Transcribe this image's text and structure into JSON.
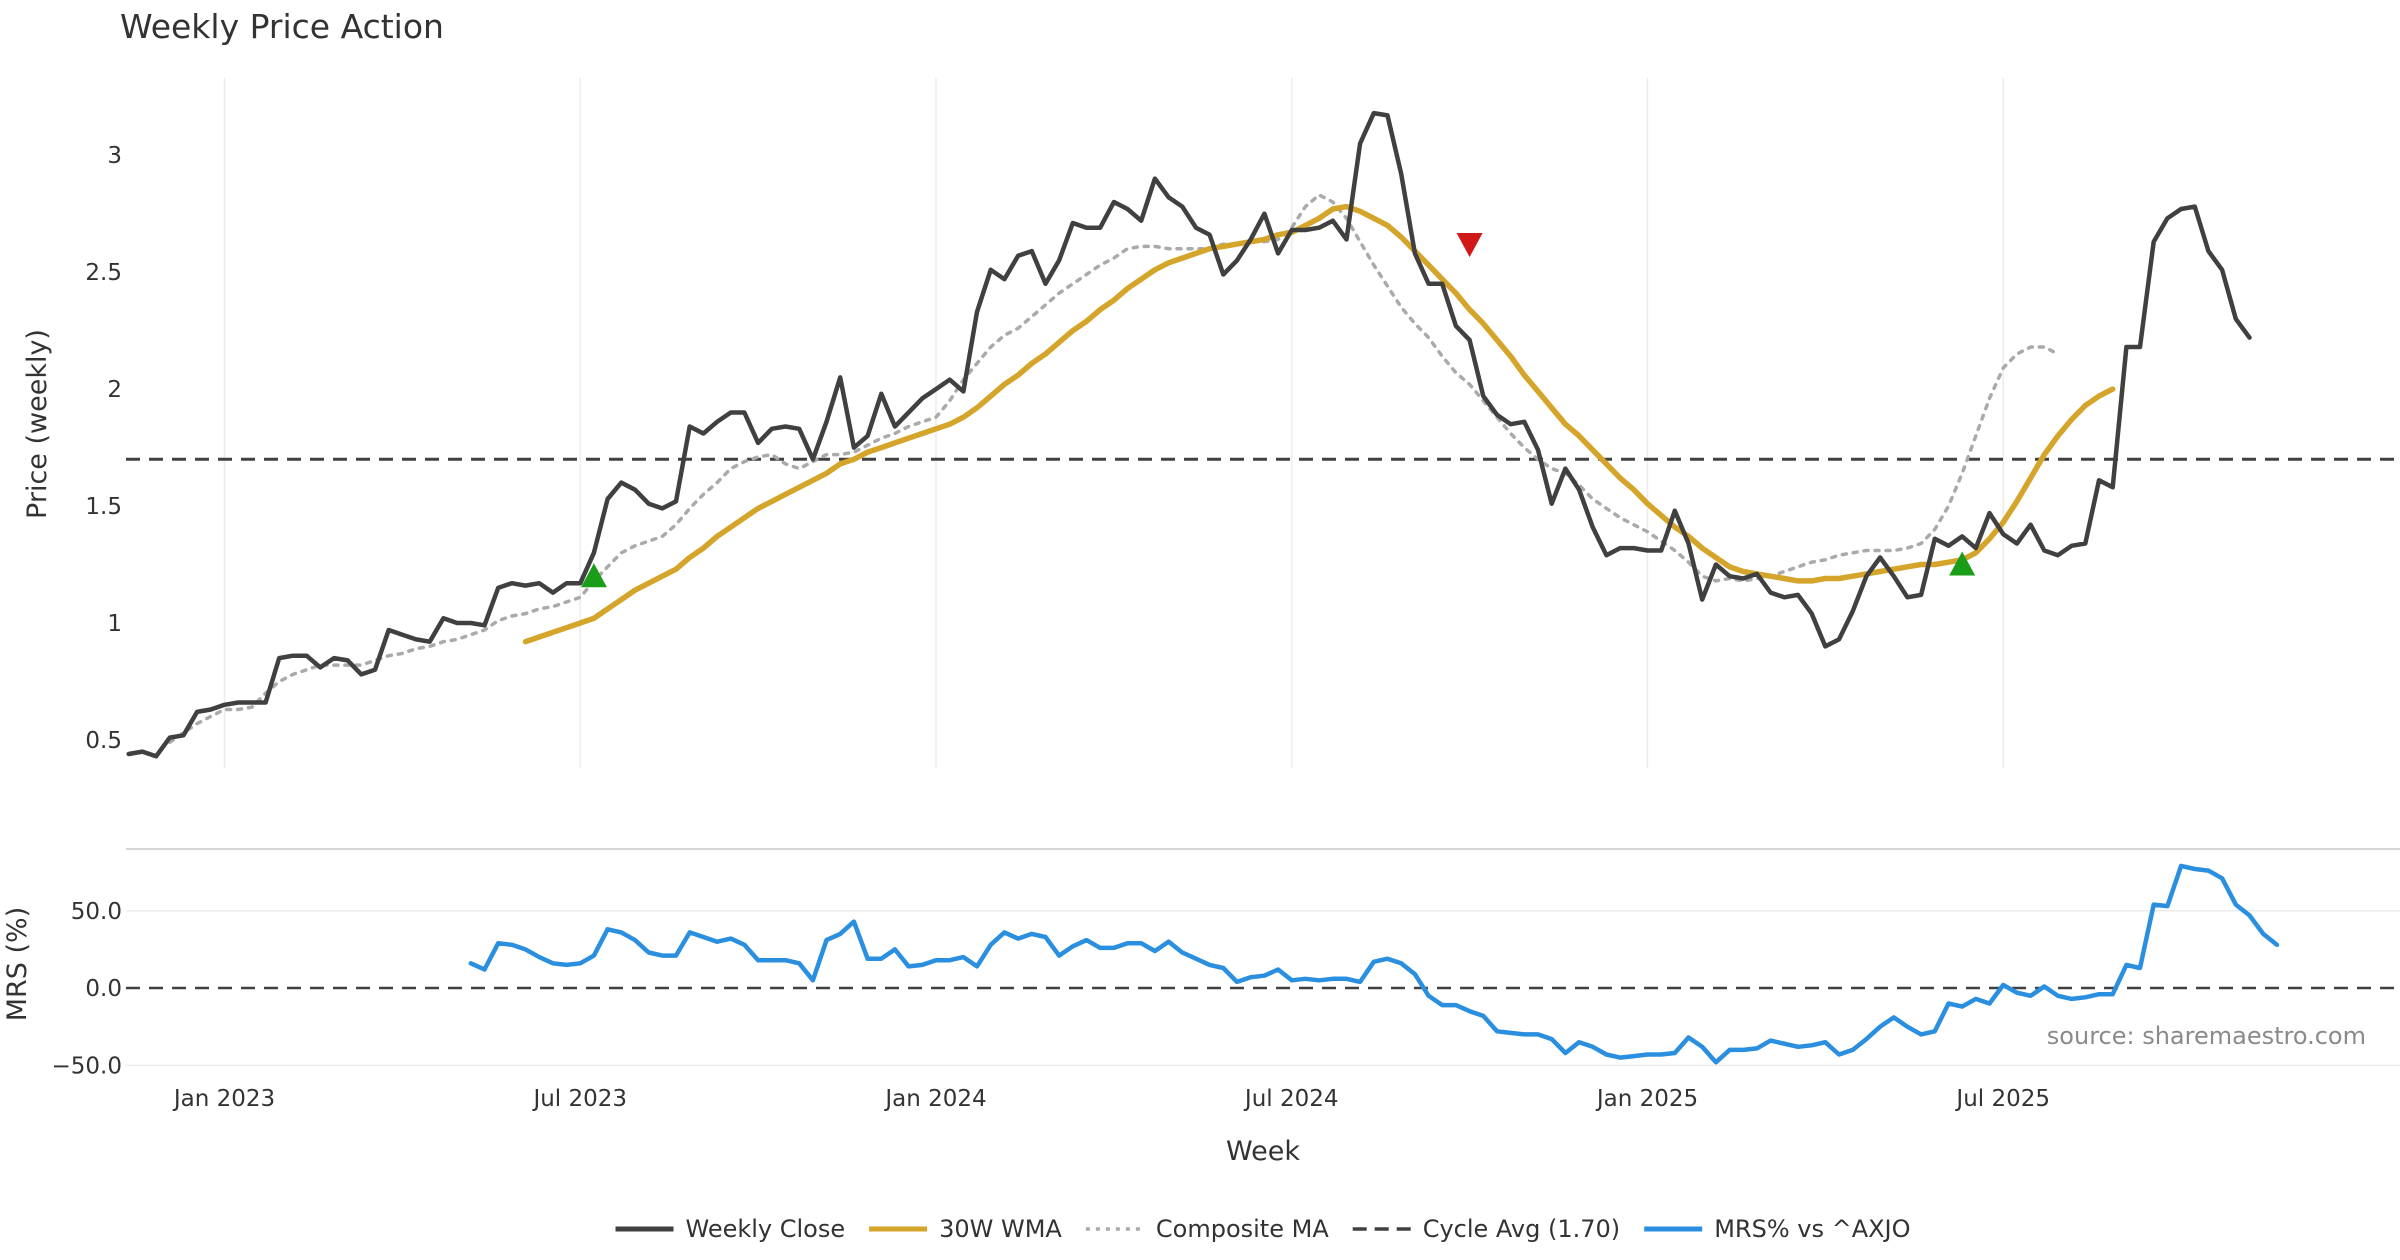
{
  "chart_data": {
    "type": "line",
    "title": "Weekly Price Action",
    "xlabel": "Week",
    "source": "source: sharemaestro.com",
    "x_ticks": [
      "Jan 2023",
      "Jul 2023",
      "Jan 2024",
      "Jul 2024",
      "Jan 2025",
      "Jul 2025"
    ],
    "x_tick_weeks": [
      4,
      30,
      56,
      82,
      108,
      134
    ],
    "x_range_weeks": [
      -3.2,
      163
    ],
    "price_panel": {
      "ylabel": "Price (weekly)",
      "ylim": [
        0.38,
        3.33
      ],
      "yticks": [
        0.5,
        1,
        1.5,
        2,
        2.5,
        3
      ],
      "ytick_labels": [
        "0.5",
        "1",
        "1.5",
        "2",
        "2.5",
        "3"
      ],
      "grid": true,
      "series": [
        {
          "name": "Weekly Close",
          "color": "#404040",
          "start_week": -3,
          "values": [
            0.44,
            0.45,
            0.43,
            0.51,
            0.52,
            0.62,
            0.63,
            0.65,
            0.66,
            0.66,
            0.66,
            0.85,
            0.86,
            0.86,
            0.81,
            0.85,
            0.84,
            0.78,
            0.8,
            0.97,
            0.95,
            0.93,
            0.92,
            1.02,
            1.0,
            1.0,
            0.99,
            1.15,
            1.17,
            1.16,
            1.17,
            1.13,
            1.17,
            1.17,
            1.3,
            1.53,
            1.6,
            1.57,
            1.51,
            1.49,
            1.52,
            1.84,
            1.81,
            1.86,
            1.9,
            1.9,
            1.77,
            1.83,
            1.84,
            1.83,
            1.7,
            1.86,
            2.05,
            1.75,
            1.8,
            1.98,
            1.84,
            1.9,
            1.96,
            2.0,
            2.04,
            1.99,
            2.33,
            2.51,
            2.47,
            2.57,
            2.59,
            2.45,
            2.55,
            2.71,
            2.69,
            2.69,
            2.8,
            2.77,
            2.72,
            2.9,
            2.82,
            2.78,
            2.69,
            2.66,
            2.49,
            2.55,
            2.64,
            2.75,
            2.58,
            2.68,
            2.68,
            2.69,
            2.72,
            2.64,
            3.05,
            3.18,
            3.17,
            2.92,
            2.58,
            2.45,
            2.45,
            2.27,
            2.21,
            1.97,
            1.89,
            1.85,
            1.86,
            1.74,
            1.51,
            1.66,
            1.57,
            1.41,
            1.29,
            1.32,
            1.32,
            1.31,
            1.31,
            1.48,
            1.34,
            1.1,
            1.25,
            1.2,
            1.19,
            1.21,
            1.13,
            1.11,
            1.12,
            1.04,
            0.9,
            0.93,
            1.05,
            1.2,
            1.28,
            1.2,
            1.11,
            1.12,
            1.36,
            1.33,
            1.37,
            1.32,
            1.47,
            1.38,
            1.34,
            1.42,
            1.31,
            1.29,
            1.33,
            1.34,
            1.61,
            1.58,
            2.18,
            2.18,
            2.63,
            2.73,
            2.77,
            2.78,
            2.59,
            2.51,
            2.3,
            2.22
          ]
        },
        {
          "name": "30W WMA",
          "color": "#D4A52A",
          "start_week": 26,
          "values": [
            0.92,
            0.94,
            0.96,
            0.98,
            1.0,
            1.02,
            1.06,
            1.1,
            1.14,
            1.17,
            1.2,
            1.23,
            1.28,
            1.32,
            1.37,
            1.41,
            1.45,
            1.49,
            1.52,
            1.55,
            1.58,
            1.61,
            1.64,
            1.68,
            1.7,
            1.73,
            1.75,
            1.77,
            1.79,
            1.81,
            1.83,
            1.85,
            1.88,
            1.92,
            1.97,
            2.02,
            2.06,
            2.11,
            2.15,
            2.2,
            2.25,
            2.29,
            2.34,
            2.38,
            2.43,
            2.47,
            2.51,
            2.54,
            2.56,
            2.58,
            2.6,
            2.61,
            2.62,
            2.63,
            2.64,
            2.66,
            2.67,
            2.7,
            2.73,
            2.77,
            2.78,
            2.76,
            2.73,
            2.7,
            2.65,
            2.59,
            2.53,
            2.47,
            2.41,
            2.34,
            2.28,
            2.21,
            2.14,
            2.06,
            1.99,
            1.92,
            1.85,
            1.8,
            1.74,
            1.68,
            1.62,
            1.57,
            1.51,
            1.46,
            1.41,
            1.37,
            1.32,
            1.28,
            1.24,
            1.22,
            1.21,
            1.2,
            1.19,
            1.18,
            1.18,
            1.19,
            1.19,
            1.2,
            1.21,
            1.22,
            1.23,
            1.24,
            1.25,
            1.25,
            1.26,
            1.27,
            1.3,
            1.36,
            1.43,
            1.52,
            1.62,
            1.72,
            1.8,
            1.87,
            1.93,
            1.97,
            2.0
          ]
        },
        {
          "name": "Composite MA",
          "color": "#AAAAAA",
          "start_week": 0,
          "values": [
            0.49,
            0.53,
            0.57,
            0.6,
            0.63,
            0.63,
            0.64,
            0.7,
            0.75,
            0.78,
            0.8,
            0.82,
            0.82,
            0.82,
            0.82,
            0.84,
            0.86,
            0.87,
            0.89,
            0.9,
            0.92,
            0.93,
            0.95,
            0.97,
            1.01,
            1.03,
            1.04,
            1.06,
            1.07,
            1.09,
            1.11,
            1.18,
            1.24,
            1.3,
            1.33,
            1.35,
            1.37,
            1.42,
            1.49,
            1.55,
            1.6,
            1.66,
            1.69,
            1.71,
            1.72,
            1.68,
            1.66,
            1.69,
            1.72,
            1.72,
            1.73,
            1.76,
            1.79,
            1.81,
            1.84,
            1.86,
            1.88,
            1.95,
            2.04,
            2.11,
            2.18,
            2.23,
            2.26,
            2.31,
            2.36,
            2.41,
            2.45,
            2.49,
            2.53,
            2.56,
            2.6,
            2.61,
            2.61,
            2.6,
            2.6,
            2.6,
            2.6,
            2.62,
            2.62,
            2.63,
            2.63,
            2.64,
            2.69,
            2.78,
            2.83,
            2.8,
            2.73,
            2.63,
            2.53,
            2.44,
            2.35,
            2.28,
            2.22,
            2.14,
            2.07,
            2.02,
            1.95,
            1.88,
            1.81,
            1.75,
            1.7,
            1.66,
            1.64,
            1.59,
            1.53,
            1.49,
            1.45,
            1.42,
            1.39,
            1.35,
            1.31,
            1.26,
            1.2,
            1.18,
            1.19,
            1.18,
            1.19,
            1.2,
            1.22,
            1.24,
            1.26,
            1.27,
            1.29,
            1.3,
            1.31,
            1.31,
            1.31,
            1.32,
            1.34,
            1.4,
            1.5,
            1.64,
            1.8,
            1.96,
            2.09,
            2.15,
            2.18,
            2.18,
            2.15
          ]
        }
      ],
      "reference_line": {
        "name": "Cycle Avg (1.70)",
        "value": 1.7,
        "color": "#404040"
      },
      "markers": [
        {
          "type": "buy",
          "week": 31,
          "value": 1.2,
          "color": "#1A9E1A"
        },
        {
          "type": "sell",
          "week": 95,
          "value": 2.62,
          "color": "#D01818"
        },
        {
          "type": "buy",
          "week": 131,
          "value": 1.25,
          "color": "#1A9E1A"
        }
      ]
    },
    "mrs_panel": {
      "ylabel": "MRS (%)",
      "ylim": [
        -53,
        88
      ],
      "yticks": [
        -50,
        0,
        50
      ],
      "ytick_labels": [
        "−50.0",
        "0.0",
        "50.0"
      ],
      "reference_value": 0,
      "series": [
        {
          "name": "MRS% vs ^AXJO",
          "color": "#2B8FE0",
          "start_week": 22,
          "values": [
            16,
            12,
            29,
            28,
            25,
            20,
            16,
            15,
            16,
            21,
            38,
            36,
            31,
            23,
            21,
            21,
            36,
            33,
            30,
            32,
            28,
            18,
            18,
            18,
            16,
            5,
            31,
            35,
            43,
            19,
            19,
            25,
            14,
            15,
            18,
            18,
            20,
            14,
            28,
            36,
            32,
            35,
            33,
            21,
            27,
            31,
            26,
            26,
            29,
            29,
            24,
            30,
            23,
            19,
            15,
            13,
            4,
            7,
            8,
            12,
            5,
            6,
            5,
            6,
            6,
            4,
            17,
            19,
            16,
            9,
            -5,
            -11,
            -11,
            -15,
            -18,
            -28,
            -29,
            -30,
            -30,
            -33,
            -42,
            -35,
            -38,
            -43,
            -45,
            -44,
            -43,
            -43,
            -42,
            -32,
            -38,
            -48,
            -40,
            -40,
            -39,
            -34,
            -36,
            -38,
            -37,
            -35,
            -43,
            -40,
            -33,
            -25,
            -19,
            -25,
            -30,
            -28,
            -10,
            -12,
            -7,
            -10,
            2,
            -3,
            -5,
            1,
            -5,
            -7,
            -6,
            -4,
            -4,
            15,
            13,
            54,
            53,
            79,
            77,
            76,
            71,
            54,
            47,
            35,
            28
          ]
        }
      ]
    },
    "legend": {
      "placement": "bottom-center",
      "items": [
        {
          "label": "Weekly Close",
          "style": "solid",
          "color": "#404040"
        },
        {
          "label": "30W WMA",
          "style": "solid",
          "color": "#D4A52A"
        },
        {
          "label": "Composite MA",
          "style": "dotted",
          "color": "#AAAAAA"
        },
        {
          "label": "Cycle Avg (1.70)",
          "style": "dashed",
          "color": "#404040"
        },
        {
          "label": "MRS% vs ^AXJO",
          "style": "solid",
          "color": "#2B8FE0"
        }
      ]
    }
  }
}
